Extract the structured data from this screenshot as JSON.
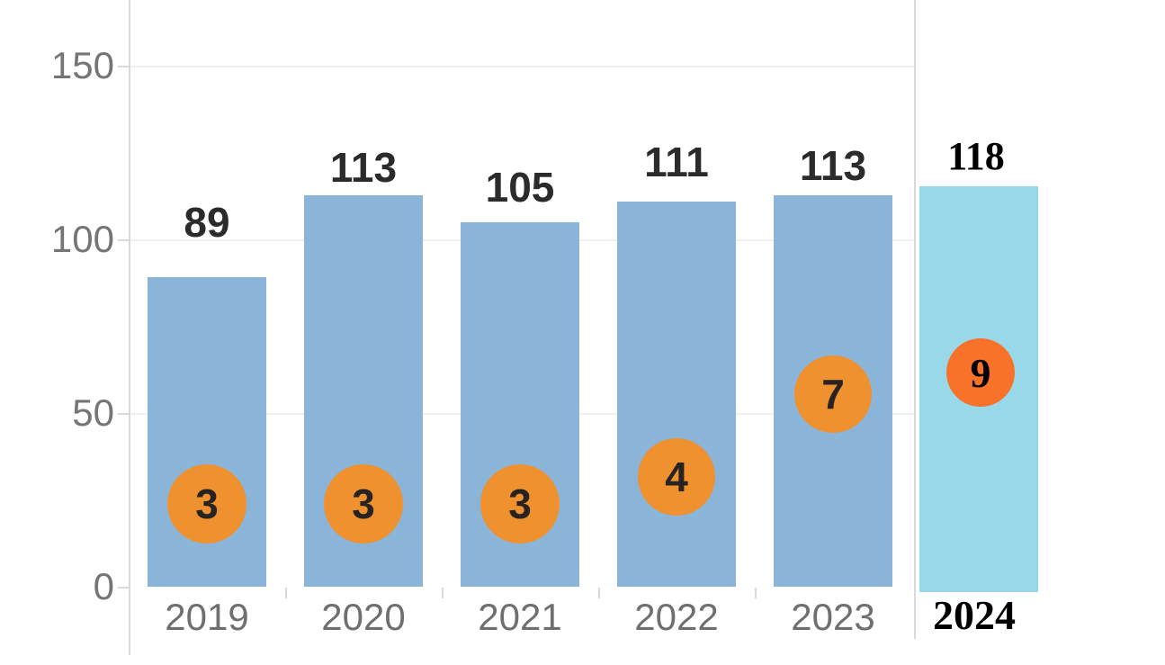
{
  "chart_data": {
    "type": "bar",
    "title": "",
    "xlabel": "",
    "ylabel": "",
    "categories": [
      "2019",
      "2020",
      "2021",
      "2022",
      "2023",
      "2024"
    ],
    "series": [
      {
        "name": "bar-total",
        "values": [
          89,
          113,
          105,
          111,
          113,
          118
        ]
      },
      {
        "name": "circle-badge",
        "values": [
          3,
          3,
          3,
          4,
          7,
          9
        ]
      }
    ],
    "ylim": [
      0,
      150
    ],
    "y_ticks": [
      150,
      100,
      50,
      0
    ],
    "grid": true,
    "legend_position": "none",
    "highlight_category": "2024",
    "colors": {
      "bar": "#8ab5d9",
      "bar_highlight": "#99d8e8",
      "badge": "#f0912f",
      "badge_highlight": "#f87329",
      "badge_text": "#262320",
      "badge_highlight_text": "#000000",
      "value_label": "#2b2b2b",
      "highlight_text": "#000000",
      "y_axis_label": "#757575",
      "category_label": "#6f6f6f",
      "gridline": "#f0f0f0",
      "axis_line": "#d9d9d9",
      "tick_mark": "#d9d9d9"
    }
  }
}
